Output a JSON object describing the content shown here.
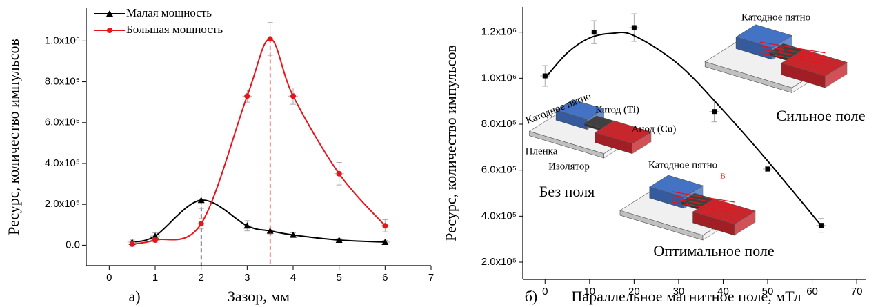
{
  "chart_data": [
    {
      "type": "line",
      "panel_label": "а)",
      "xlabel": "Зазор, мм",
      "ylabel": "Ресурс, количество импульсов",
      "xlim": [
        -0.5,
        7
      ],
      "xticks": [
        0,
        1,
        2,
        3,
        4,
        5,
        6,
        7
      ],
      "ylim": [
        -100000,
        1160000
      ],
      "yticks": [
        {
          "value": 0,
          "label": "0.0"
        },
        {
          "value": 200000,
          "label": "2.0x10⁵"
        },
        {
          "value": 400000,
          "label": "4.0x10⁵"
        },
        {
          "value": 600000,
          "label": "6.0x10⁵"
        },
        {
          "value": 800000,
          "label": "8.0x10⁵"
        },
        {
          "value": 1000000,
          "label": "1.0x10⁶"
        }
      ],
      "legend": "upper left",
      "series": [
        {
          "name": "Малая мощность",
          "color": "#000000",
          "marker": "triangle",
          "x": [
            0.5,
            1,
            2,
            3,
            3.5,
            4,
            5,
            6
          ],
          "values": [
            15000,
            45000,
            220000,
            95000,
            70000,
            50000,
            25000,
            15000
          ],
          "errors": [
            10000,
            15000,
            40000,
            25000,
            15000,
            10000,
            8000,
            8000
          ]
        },
        {
          "name": "Большая мощность",
          "color": "#e8141b",
          "marker": "circle",
          "x": [
            0.5,
            1,
            2,
            3,
            3.5,
            4,
            5,
            6
          ],
          "values": [
            5000,
            25000,
            105000,
            730000,
            1010000,
            730000,
            350000,
            95000
          ],
          "errors": [
            10000,
            10000,
            25000,
            30000,
            80000,
            40000,
            55000,
            30000
          ]
        }
      ]
    },
    {
      "type": "scatter",
      "panel_label": "б)",
      "xlabel": "Параллельное магнитное поле, мТл",
      "ylabel": "Ресурс, количество импульсов",
      "xlim": [
        -5,
        72
      ],
      "xticks": [
        0,
        10,
        20,
        30,
        40,
        50,
        60,
        70
      ],
      "ylim": [
        125000,
        1310000
      ],
      "yticks": [
        {
          "value": 200000,
          "label": "2.0x10⁵"
        },
        {
          "value": 400000,
          "label": "4.0x10⁵"
        },
        {
          "value": 600000,
          "label": "6.0x10⁵"
        },
        {
          "value": 800000,
          "label": "8.0x10⁵"
        },
        {
          "value": 1000000,
          "label": "1.0x10⁶"
        },
        {
          "value": 1200000,
          "label": "1.2x10⁶"
        }
      ],
      "color": "#000000",
      "x": [
        0,
        11,
        20,
        38,
        50,
        62
      ],
      "values": [
        1010000,
        1200000,
        1220000,
        855000,
        605000,
        360000
      ],
      "errors": [
        45000,
        50000,
        60000,
        45000,
        10000,
        30000
      ],
      "fit_x": [
        0,
        5,
        10,
        15,
        20,
        30,
        40,
        50,
        62
      ],
      "fit_values": [
        1000000,
        1110000,
        1175000,
        1195000,
        1185000,
        1060000,
        860000,
        640000,
        360000
      ],
      "annotations": [
        "Катодное пятно",
        "Сильное поле",
        "Катодное пятно",
        "Катод (Ti)",
        "Анод (Cu)",
        "Пленка",
        "Изолятор",
        "Без поля",
        "Катодное пятно",
        "B",
        "B",
        "Оптимальное поле"
      ]
    }
  ]
}
